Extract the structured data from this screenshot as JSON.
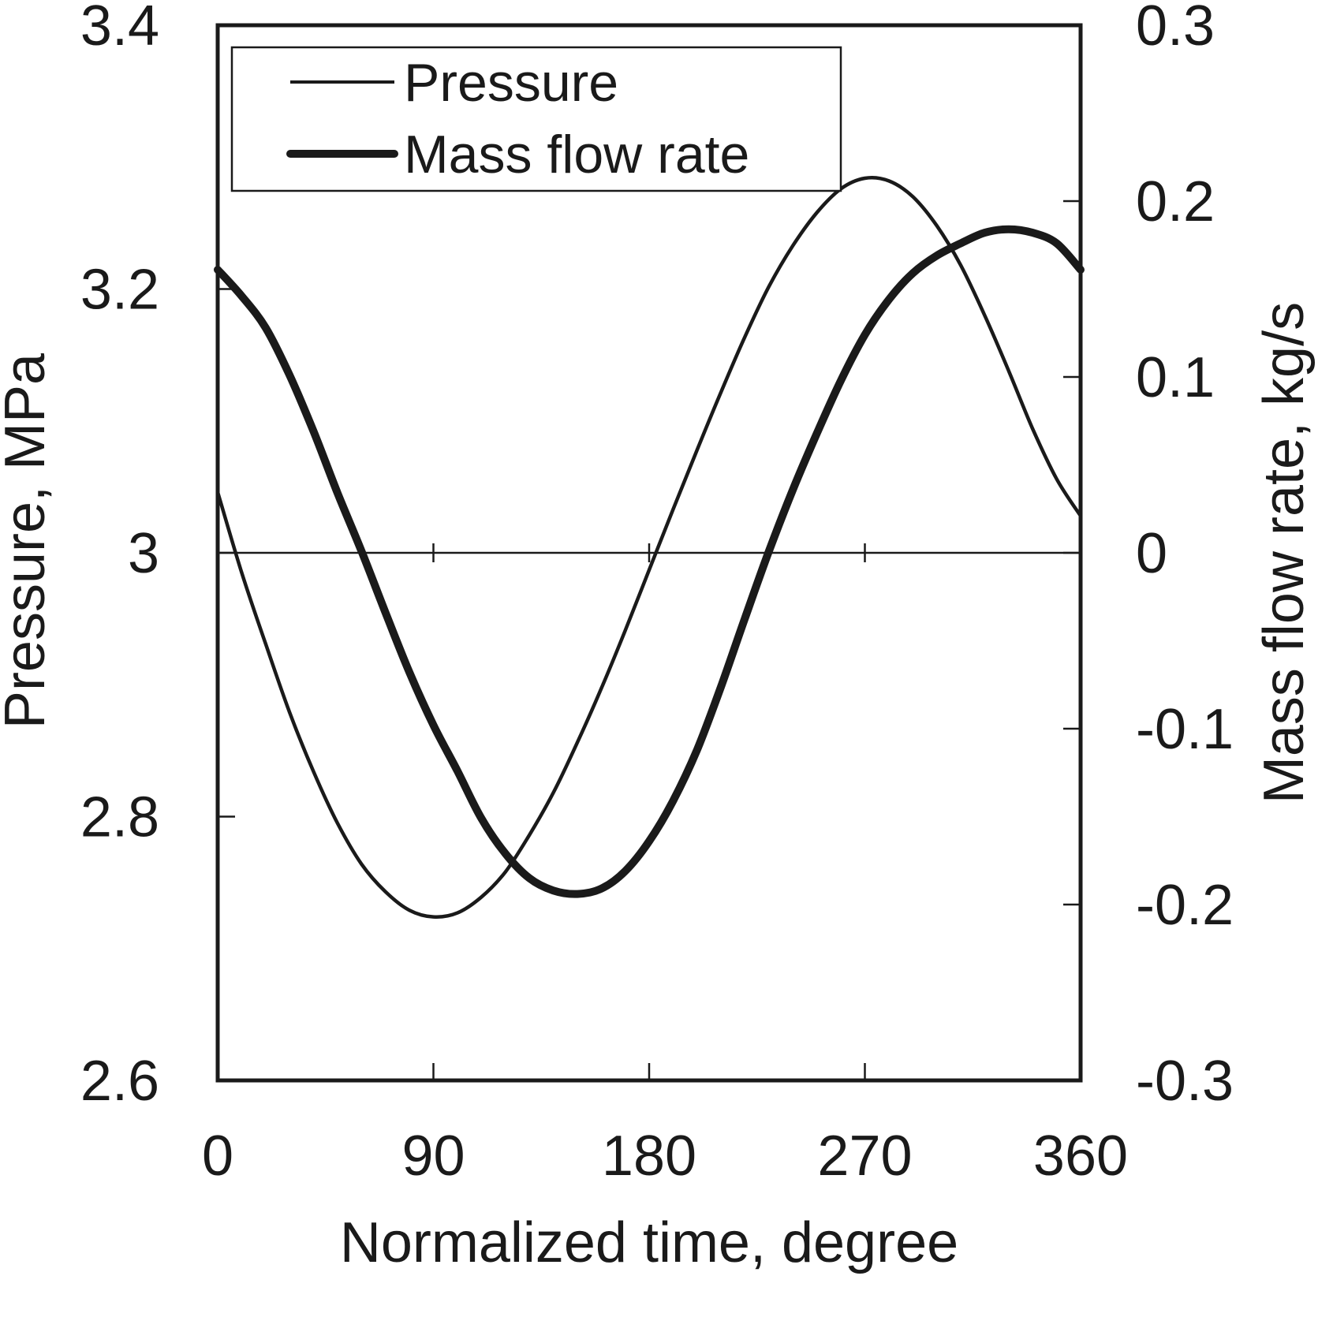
{
  "chart_data": {
    "type": "line",
    "xlabel": "Normalized time, degree",
    "ylabel_left": "Pressure, MPa",
    "ylabel_right": "Mass flow rate, kg/s",
    "xlim": [
      0,
      360
    ],
    "ylim_left": [
      2.6,
      3.4
    ],
    "ylim_right": [
      -0.3,
      0.3
    ],
    "x_ticks": [
      "0",
      "90",
      "180",
      "270",
      "360"
    ],
    "y_left_ticks": [
      "2.6",
      "2.8",
      "3",
      "3.2",
      "3.4"
    ],
    "y_right_ticks": [
      "-0.3",
      "-0.2",
      "-0.1",
      "0",
      "0.1",
      "0.2",
      "0.3"
    ],
    "zero_line": true,
    "grid": false,
    "legend": {
      "placement": "top-left",
      "entries": [
        "Pressure",
        "Mass flow rate"
      ]
    },
    "series": [
      {
        "name": "Pressure",
        "axis": "left",
        "line_weight": "thin",
        "x": [
          0,
          10,
          20,
          30,
          40,
          50,
          60,
          70,
          80,
          90,
          100,
          110,
          120,
          130,
          140,
          150,
          160,
          170,
          180,
          190,
          200,
          210,
          220,
          230,
          240,
          250,
          260,
          270,
          280,
          290,
          300,
          310,
          320,
          330,
          340,
          350,
          360
        ],
        "values": [
          3.046,
          2.985,
          2.931,
          2.879,
          2.834,
          2.795,
          2.764,
          2.743,
          2.729,
          2.724,
          2.727,
          2.739,
          2.758,
          2.786,
          2.818,
          2.856,
          2.897,
          2.941,
          2.987,
          3.033,
          3.078,
          3.122,
          3.164,
          3.202,
          3.233,
          3.258,
          3.276,
          3.284,
          3.282,
          3.27,
          3.248,
          3.218,
          3.18,
          3.138,
          3.094,
          3.056,
          3.028
        ]
      },
      {
        "name": "Mass flow rate",
        "axis": "right",
        "line_weight": "thick",
        "x": [
          0,
          10,
          20,
          30,
          40,
          50,
          60,
          70,
          80,
          90,
          100,
          110,
          120,
          130,
          140,
          150,
          160,
          170,
          180,
          190,
          200,
          210,
          220,
          230,
          240,
          250,
          260,
          270,
          280,
          290,
          300,
          310,
          320,
          330,
          340,
          350,
          360
        ],
        "values": [
          0.161,
          0.146,
          0.128,
          0.101,
          0.069,
          0.034,
          0.001,
          -0.034,
          -0.068,
          -0.098,
          -0.124,
          -0.151,
          -0.171,
          -0.185,
          -0.192,
          -0.194,
          -0.191,
          -0.181,
          -0.164,
          -0.141,
          -0.112,
          -0.076,
          -0.037,
          0.001,
          0.036,
          0.068,
          0.098,
          0.124,
          0.144,
          0.159,
          0.169,
          0.176,
          0.182,
          0.184,
          0.182,
          0.176,
          0.161
        ]
      }
    ]
  }
}
